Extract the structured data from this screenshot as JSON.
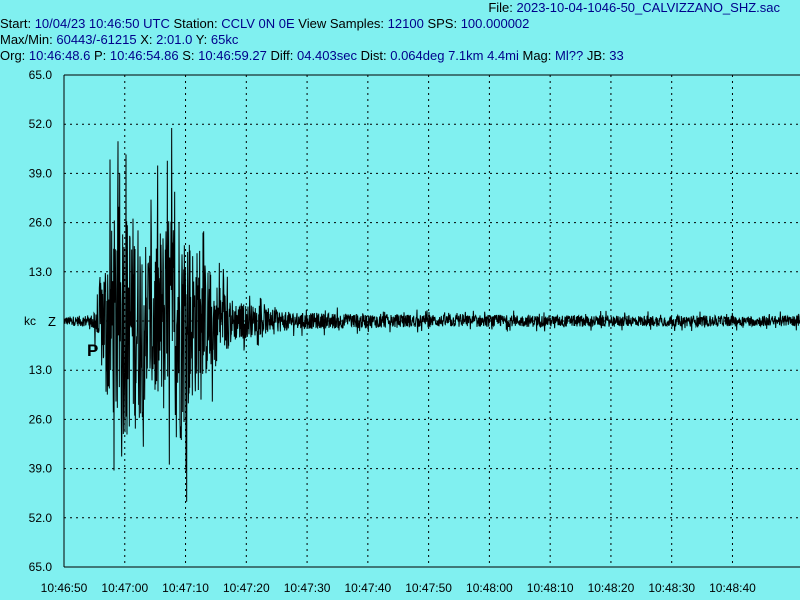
{
  "header": {
    "file_key": "File:",
    "file_value": "2023-10-04-1046-50_CALVIZZANO_SHZ.sac",
    "start_key": "Start:",
    "start_value": "10/04/23 10:46:50 UTC",
    "station_key": "Station:",
    "station_value": "CCLV 0N 0E",
    "view_key": "View Samples:",
    "view_value": "12100",
    "sps_key": "SPS:",
    "sps_value": "100.000002",
    "maxmin_key": "Max/Min:",
    "maxmin_value": "60443/-61215",
    "x_key": "X:",
    "x_value": "2:01.0",
    "y_key": "Y:",
    "y_value": "65kc",
    "org_key": "Org:",
    "org_value": "10:46:48.6",
    "p_key": "P:",
    "p_value": "10:46:54.86",
    "s_key": "S:",
    "s_value": "10:46:59.27",
    "diff_key": "Diff:",
    "diff_value": "04.403sec",
    "dist_key": "Dist:",
    "dist_value": "0.064deg 7.1km 4.4mi",
    "mag_key": "Mag:",
    "mag_value": "Ml??",
    "jb_key": "JB:",
    "jb_value": "33"
  },
  "colors": {
    "background": "#80f0f0",
    "trace": "#000000",
    "grid": "#000000",
    "header_value": "#00008b"
  },
  "chart_data": {
    "type": "line",
    "title": "",
    "xlabel": "",
    "ylabel": "kc",
    "channel_label": "Z",
    "phase_marker": "P",
    "y_ticks": [
      "65.0",
      "52.0",
      "39.0",
      "26.0",
      "13.0",
      "kc",
      "13.0",
      "26.0",
      "39.0",
      "52.0",
      "65.0"
    ],
    "x_ticks": [
      "10:46:50",
      "10:47:00",
      "10:47:10",
      "10:47:20",
      "10:47:30",
      "10:47:40",
      "10:47:50",
      "10:48:00",
      "10:48:10",
      "10:48:20",
      "10:48:30",
      "10:48:40"
    ],
    "ylim": [
      -65,
      65
    ],
    "x_range_seconds": [
      0,
      121
    ],
    "p_arrival_seconds": 4.86,
    "envelope": [
      {
        "t": 0,
        "amp": 2
      },
      {
        "t": 4.5,
        "amp": 3
      },
      {
        "t": 5.5,
        "amp": 15
      },
      {
        "t": 7,
        "amp": 38
      },
      {
        "t": 9,
        "amp": 57
      },
      {
        "t": 12,
        "amp": 52
      },
      {
        "t": 14,
        "amp": 40
      },
      {
        "t": 17,
        "amp": 50
      },
      {
        "t": 19,
        "amp": 62
      },
      {
        "t": 21,
        "amp": 40
      },
      {
        "t": 25,
        "amp": 20
      },
      {
        "t": 28,
        "amp": 10
      },
      {
        "t": 32,
        "amp": 7
      },
      {
        "t": 38,
        "amp": 4
      },
      {
        "t": 60,
        "amp": 3
      },
      {
        "t": 121,
        "amp": 2.5
      }
    ],
    "grid": true
  }
}
